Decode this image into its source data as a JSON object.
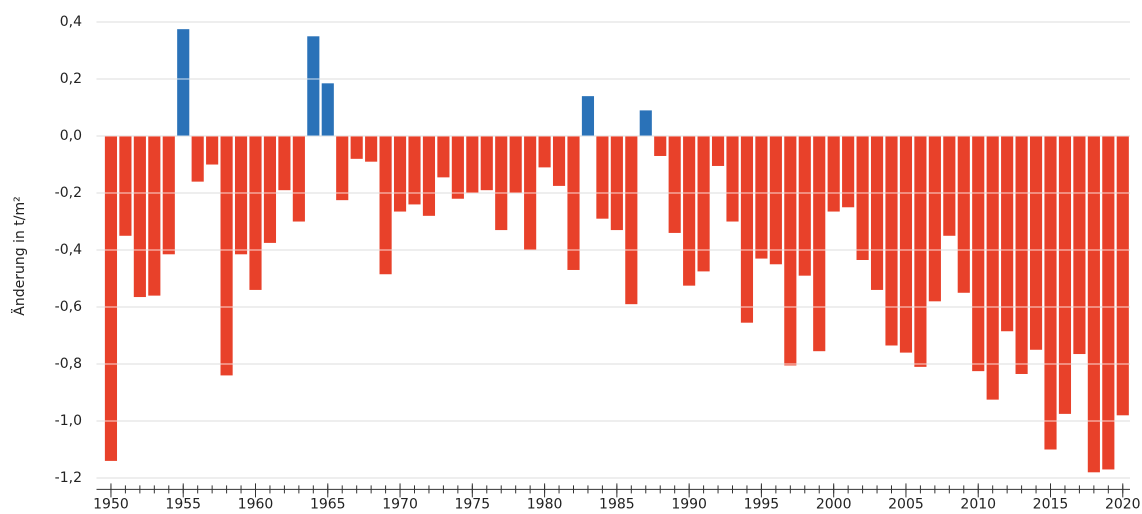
{
  "chart_data": {
    "type": "bar",
    "y_label": "Änderung in t/m²",
    "x": [
      1950,
      1951,
      1952,
      1953,
      1954,
      1955,
      1956,
      1957,
      1958,
      1959,
      1960,
      1961,
      1962,
      1963,
      1964,
      1965,
      1966,
      1967,
      1968,
      1969,
      1970,
      1971,
      1972,
      1973,
      1974,
      1975,
      1976,
      1977,
      1978,
      1979,
      1980,
      1981,
      1982,
      1983,
      1984,
      1985,
      1986,
      1987,
      1988,
      1989,
      1990,
      1991,
      1992,
      1993,
      1994,
      1995,
      1996,
      1997,
      1998,
      1999,
      2000,
      2001,
      2002,
      2003,
      2004,
      2005,
      2006,
      2007,
      2008,
      2009,
      2010,
      2011,
      2012,
      2013,
      2014,
      2015,
      2016,
      2017,
      2018,
      2019,
      2020
    ],
    "values": [
      -1.14,
      -0.35,
      -0.565,
      -0.56,
      -0.415,
      0.375,
      -0.16,
      -0.1,
      -0.84,
      -0.415,
      -0.54,
      -0.375,
      -0.19,
      -0.3,
      0.35,
      0.185,
      -0.225,
      -0.08,
      -0.09,
      -0.485,
      -0.265,
      -0.24,
      -0.28,
      -0.145,
      -0.22,
      -0.2,
      -0.19,
      -0.33,
      -0.2,
      -0.4,
      -0.11,
      -0.175,
      -0.47,
      0.14,
      -0.29,
      -0.33,
      -0.59,
      0.09,
      -0.07,
      -0.34,
      -0.525,
      -0.475,
      -0.105,
      -0.3,
      -0.655,
      -0.43,
      -0.45,
      -0.805,
      -0.49,
      -0.755,
      -0.265,
      -0.25,
      -0.435,
      -0.54,
      -0.735,
      -0.76,
      -0.81,
      -0.58,
      -0.35,
      -0.55,
      -0.825,
      -0.925,
      -0.685,
      -0.835,
      -0.75,
      -1.1,
      -0.975,
      -0.765,
      -1.18,
      -1.17,
      -0.98
    ],
    "positive_color": "#2a72b8",
    "negative_color": "#e8412a",
    "xlim": [
      1949,
      2020.5
    ],
    "xticks": [
      1950,
      1955,
      1960,
      1965,
      1970,
      1975,
      1980,
      1985,
      1990,
      1995,
      2000,
      2005,
      2010,
      2015,
      2020
    ],
    "ylim": [
      -1.24,
      0.43
    ],
    "yticks": [
      {
        "value": 0.4,
        "label": "0,4"
      },
      {
        "value": 0.2,
        "label": "0,2"
      },
      {
        "value": 0,
        "label": "0,0"
      },
      {
        "value": -0.2,
        "label": "-0,2"
      },
      {
        "value": -0.4,
        "label": "-0,4"
      },
      {
        "value": -0.6,
        "label": "-0,6"
      },
      {
        "value": -0.8,
        "label": "-0,8"
      },
      {
        "value": -1.0,
        "label": "-1,0"
      },
      {
        "value": -1.2,
        "label": "-1,2"
      }
    ],
    "grid": true
  }
}
